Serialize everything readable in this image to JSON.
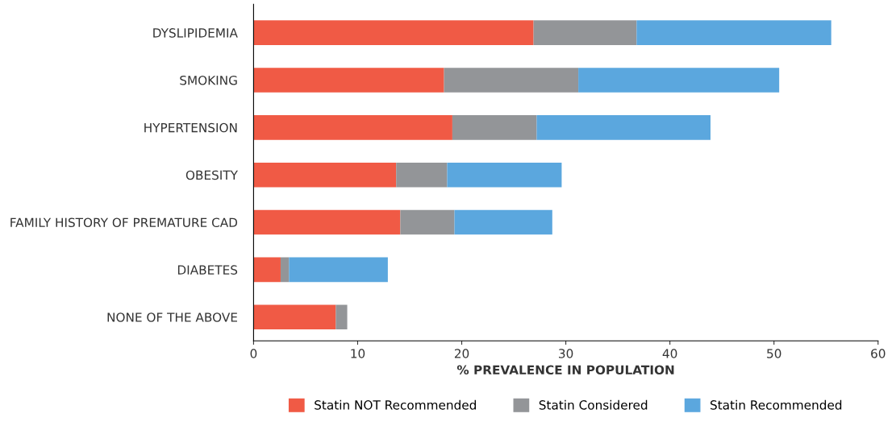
{
  "chart_data": {
    "type": "bar",
    "orientation": "horizontal",
    "stacked": true,
    "categories": [
      "DYSLIPIDEMIA",
      "SMOKING",
      "HYPERTENSION",
      "OBESITY",
      "FAMILY HISTORY OF PREMATURE CAD",
      "DIABETES",
      "NONE OF THE ABOVE"
    ],
    "series": [
      {
        "name": "Statin NOT Recommended",
        "color": "#f05a45",
        "values": [
          26.9,
          18.3,
          19.1,
          13.7,
          14.1,
          2.6,
          7.9
        ]
      },
      {
        "name": "Statin Considered",
        "color": "#939598",
        "values": [
          9.9,
          12.9,
          8.1,
          4.9,
          5.2,
          0.8,
          1.1
        ]
      },
      {
        "name": "Statin Recommended",
        "color": "#5ba7de",
        "values": [
          18.7,
          19.3,
          16.7,
          11.0,
          9.4,
          9.5,
          0
        ]
      }
    ],
    "xlabel": "% PREVALENCE IN POPULATION",
    "xlim": [
      0,
      60
    ],
    "xticks": [
      0,
      10,
      20,
      30,
      40,
      50,
      60
    ],
    "grid": false,
    "legend": "bottom"
  }
}
